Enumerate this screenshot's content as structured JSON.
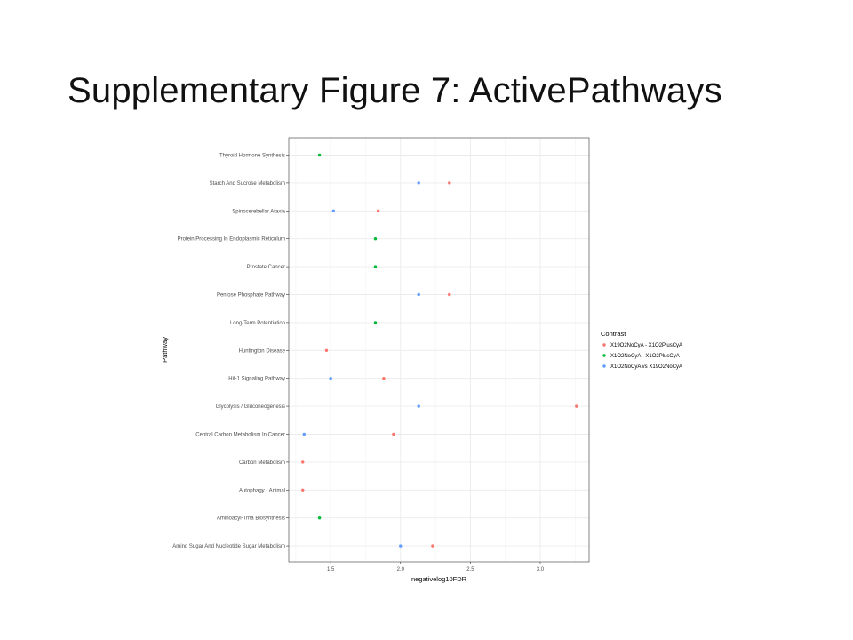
{
  "slide": {
    "title": "Supplementary Figure 7: ActivePathways"
  },
  "chart_data": {
    "type": "scatter",
    "title": "",
    "xlabel": "negativelog10FDR",
    "ylabel": "Pathway",
    "xlim": [
      1.2,
      3.35
    ],
    "xticks": [
      "1.5",
      "2.0",
      "2.5",
      "3.0"
    ],
    "grid": true,
    "legend_title": "Contrast",
    "legend_position": "right",
    "categories": [
      "Thyroid Hormone Synthesis",
      "Starch And Sucrose Metabolism",
      "Spinocerebellar Ataxia",
      "Protein Processing In Endoplasmic Reticulum",
      "Prostate Cancer",
      "Pentose Phosphate Pathway",
      "Long-Term Potentiation",
      "Huntington Disease",
      "Hif-1 Signaling Pathway",
      "Glycolysis / Gluconeogenesis",
      "Central Carbon Metabolism In Cancer",
      "Carbon Metabolism",
      "Autophagy - Animal",
      "Aminoacyl-Trna Biosynthesis",
      "Amino Sugar And Nucleotide Sugar Metabolism"
    ],
    "series": [
      {
        "name": "X19O2NoCyA - X1O2PlusCyA",
        "color": "#F8766D",
        "points": [
          {
            "pathway": "Starch And Sucrose Metabolism",
            "x": 2.35
          },
          {
            "pathway": "Spinocerebellar Ataxia",
            "x": 1.84
          },
          {
            "pathway": "Pentose Phosphate Pathway",
            "x": 2.35
          },
          {
            "pathway": "Huntington Disease",
            "x": 1.47
          },
          {
            "pathway": "Hif-1 Signaling Pathway",
            "x": 1.88
          },
          {
            "pathway": "Glycolysis / Gluconeogenesis",
            "x": 3.26
          },
          {
            "pathway": "Central Carbon Metabolism In Cancer",
            "x": 1.95
          },
          {
            "pathway": "Carbon Metabolism",
            "x": 1.3
          },
          {
            "pathway": "Autophagy - Animal",
            "x": 1.3
          },
          {
            "pathway": "Amino Sugar And Nucleotide Sugar Metabolism",
            "x": 2.23
          }
        ]
      },
      {
        "name": "X1O2NoCyA - X1O2PlusCyA",
        "color": "#00BA38",
        "points": [
          {
            "pathway": "Thyroid Hormone Synthesis",
            "x": 1.42
          },
          {
            "pathway": "Protein Processing In Endoplasmic Reticulum",
            "x": 1.82
          },
          {
            "pathway": "Prostate Cancer",
            "x": 1.82
          },
          {
            "pathway": "Long-Term Potentiation",
            "x": 1.82
          },
          {
            "pathway": "Aminoacyl-Trna Biosynthesis",
            "x": 1.42
          }
        ]
      },
      {
        "name": "X1O2NoCyA vs X19O2NoCyA",
        "color": "#619CFF",
        "points": [
          {
            "pathway": "Starch And Sucrose Metabolism",
            "x": 2.13
          },
          {
            "pathway": "Spinocerebellar Ataxia",
            "x": 1.52
          },
          {
            "pathway": "Pentose Phosphate Pathway",
            "x": 2.13
          },
          {
            "pathway": "Hif-1 Signaling Pathway",
            "x": 1.5
          },
          {
            "pathway": "Glycolysis / Gluconeogenesis",
            "x": 2.13
          },
          {
            "pathway": "Central Carbon Metabolism In Cancer",
            "x": 1.31
          },
          {
            "pathway": "Amino Sugar And Nucleotide Sugar Metabolism",
            "x": 2.0
          }
        ]
      }
    ]
  }
}
